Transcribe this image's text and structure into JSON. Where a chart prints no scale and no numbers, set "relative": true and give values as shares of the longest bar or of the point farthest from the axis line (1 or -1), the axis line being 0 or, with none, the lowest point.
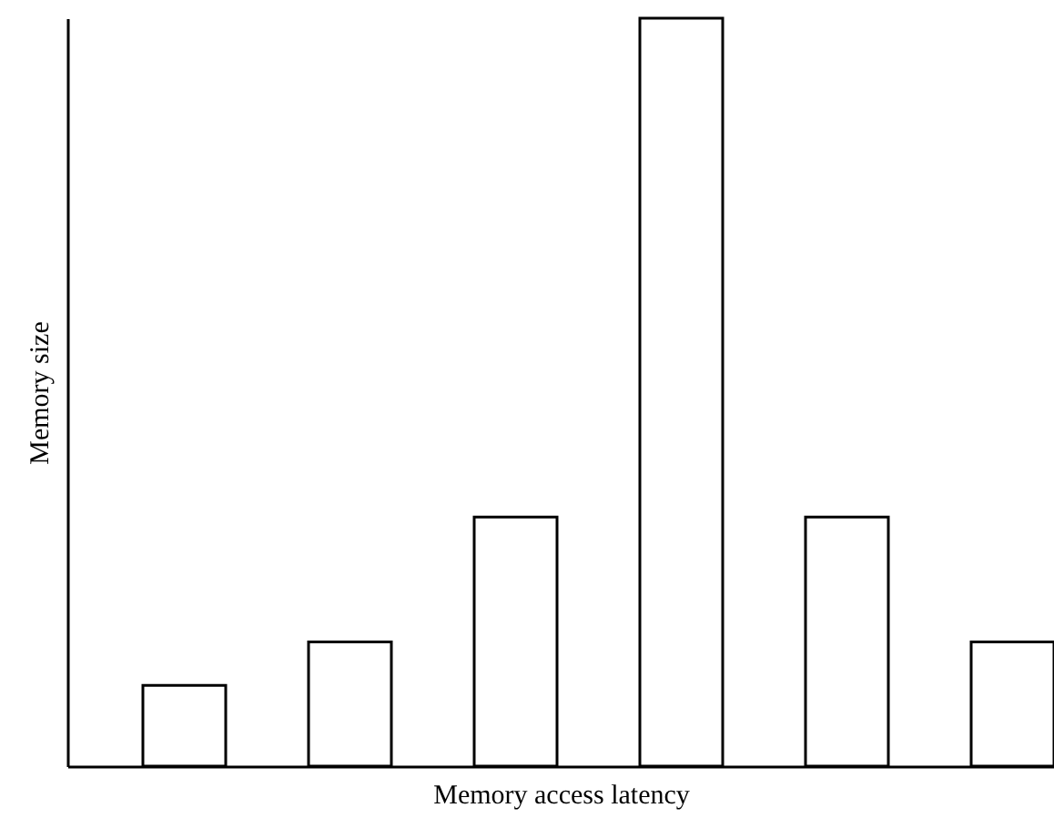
{
  "chart_data": {
    "type": "bar",
    "xlabel": "Memory access latency",
    "ylabel": "Memory size",
    "categories": [
      null,
      null,
      null,
      null,
      null,
      null
    ],
    "values": [
      0.108,
      0.166,
      0.333,
      1,
      0.333,
      0.166
    ],
    "color": "#ffffff",
    "relative": true
  }
}
